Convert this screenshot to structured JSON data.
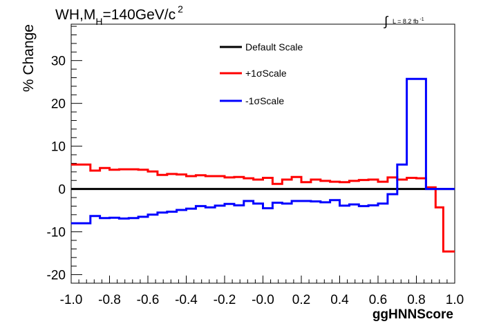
{
  "chart_data": {
    "type": "line",
    "title": {
      "main": "WH,M",
      "sub": "H",
      "rest": "=140GeV/c",
      "sup": "2"
    },
    "lumi": {
      "integral": "∫",
      "text": "L = 8.2 fb",
      "sup": "-1"
    },
    "xlabel": "ggHNNScore",
    "ylabel": "% Change",
    "xlim": [
      -1.0,
      1.0
    ],
    "ylim": [
      -22,
      38.5
    ],
    "x_ticks": [
      -1.0,
      -0.8,
      -0.6,
      -0.4,
      -0.2,
      0.0,
      0.2,
      0.4,
      0.6,
      0.8,
      1.0
    ],
    "x_tick_labels": [
      "-1.0",
      "-0.8",
      "-0.6",
      "-0.4",
      "-0.2",
      "-0.0",
      "0.2",
      "0.4",
      "0.6",
      "0.8",
      "1.0"
    ],
    "y_ticks": [
      -20,
      -10,
      0,
      10,
      20,
      30
    ],
    "y_tick_labels": [
      "-20",
      "-10",
      "0",
      "10",
      "20",
      "30"
    ],
    "grid": false,
    "legend_position": "top-center",
    "bin_edges": [
      -1.0,
      -0.9,
      -0.85,
      -0.8,
      -0.75,
      -0.7,
      -0.65,
      -0.6,
      -0.55,
      -0.5,
      -0.45,
      -0.4,
      -0.35,
      -0.3,
      -0.25,
      -0.2,
      -0.15,
      -0.1,
      -0.05,
      0.0,
      0.05,
      0.1,
      0.15,
      0.2,
      0.25,
      0.3,
      0.35,
      0.4,
      0.45,
      0.5,
      0.55,
      0.6,
      0.65,
      0.7,
      0.75,
      0.8,
      0.85,
      0.9,
      0.94,
      0.97,
      1.0
    ],
    "series": [
      {
        "name": "Default Scale",
        "color": "#000000",
        "values": [
          0,
          0,
          0,
          0,
          0,
          0,
          0,
          0,
          0,
          0,
          0,
          0,
          0,
          0,
          0,
          0,
          0,
          0,
          0,
          0,
          0,
          0,
          0,
          0,
          0,
          0,
          0,
          0,
          0,
          0,
          0,
          0,
          0,
          0,
          0,
          0,
          0,
          0,
          0,
          0
        ]
      },
      {
        "name": "+1σScale",
        "color": "#ff0000",
        "values": [
          5.7,
          4.3,
          4.9,
          4.5,
          4.6,
          4.6,
          4.5,
          4.1,
          3.3,
          3.5,
          3.4,
          3.0,
          3.2,
          3.0,
          3.0,
          2.7,
          2.8,
          2.5,
          2.2,
          2.6,
          1.2,
          2.2,
          2.8,
          1.6,
          2.2,
          1.9,
          1.7,
          1.6,
          1.9,
          2.1,
          2.2,
          1.7,
          2.7,
          2.2,
          2.6,
          2.5,
          0.4,
          -4.3,
          -14.6,
          -14.6
        ]
      },
      {
        "name": "-1σScale",
        "color": "#0000ff",
        "values": [
          -8.0,
          -6.3,
          -6.8,
          -6.7,
          -6.9,
          -6.8,
          -6.5,
          -6.0,
          -5.5,
          -5.3,
          -4.9,
          -4.6,
          -4.0,
          -4.3,
          -3.9,
          -3.5,
          -3.8,
          -2.8,
          -3.4,
          -4.5,
          -3.2,
          -3.4,
          -2.8,
          -2.8,
          -2.9,
          -3.1,
          -2.6,
          -3.9,
          -3.6,
          -4.0,
          -3.8,
          -3.4,
          -1.2,
          5.7,
          25.7,
          25.7,
          0,
          0,
          0,
          0
        ]
      }
    ]
  }
}
